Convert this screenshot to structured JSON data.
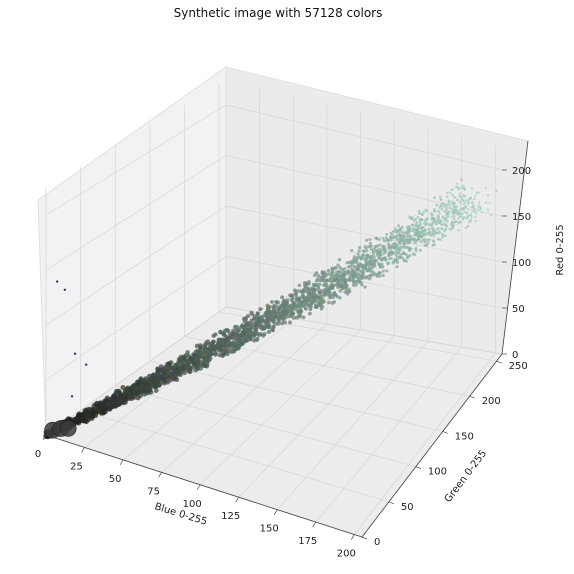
{
  "chart_data": {
    "type": "scatter",
    "title": "Synthetic image with 57128 colors",
    "projection": "3d",
    "x_axis": {
      "label": "Blue 0-255",
      "ticks": [
        0,
        25,
        50,
        75,
        100,
        125,
        150,
        175,
        200
      ],
      "range": [
        0,
        205
      ]
    },
    "y_axis": {
      "label": "Green 0-255",
      "ticks": [
        0,
        50,
        100,
        150,
        200,
        250
      ],
      "range": [
        0,
        260
      ]
    },
    "z_axis": {
      "label": "Red 0-255",
      "ticks": [
        0,
        50,
        100,
        150,
        200
      ],
      "range": [
        0,
        225
      ]
    },
    "grid": true,
    "series": [
      {
        "description": "dense diagonal point cloud",
        "from": {
          "blue": 0,
          "green": 0,
          "red": 0
        },
        "to": {
          "blue": 200,
          "green": 220,
          "red": 195
        },
        "color_start": "#1a1a14",
        "color_end": "#a9d4c6"
      },
      {
        "description": "large dark points near origin",
        "points": [
          {
            "blue": 2,
            "green": 5,
            "red": 3
          },
          {
            "blue": 6,
            "green": 8,
            "red": 5
          },
          {
            "blue": 10,
            "green": 10,
            "red": 6
          }
        ],
        "color": "#3b3b3b"
      },
      {
        "description": "sparse purple outliers",
        "points": [
          {
            "blue": 5,
            "green": 5,
            "red": 140
          },
          {
            "blue": 10,
            "green": 5,
            "red": 135
          },
          {
            "blue": 10,
            "green": 20,
            "red": 70
          },
          {
            "blue": 15,
            "green": 25,
            "red": 60
          },
          {
            "blue": 8,
            "green": 20,
            "red": 30
          }
        ],
        "color": "#3a3170"
      }
    ]
  }
}
